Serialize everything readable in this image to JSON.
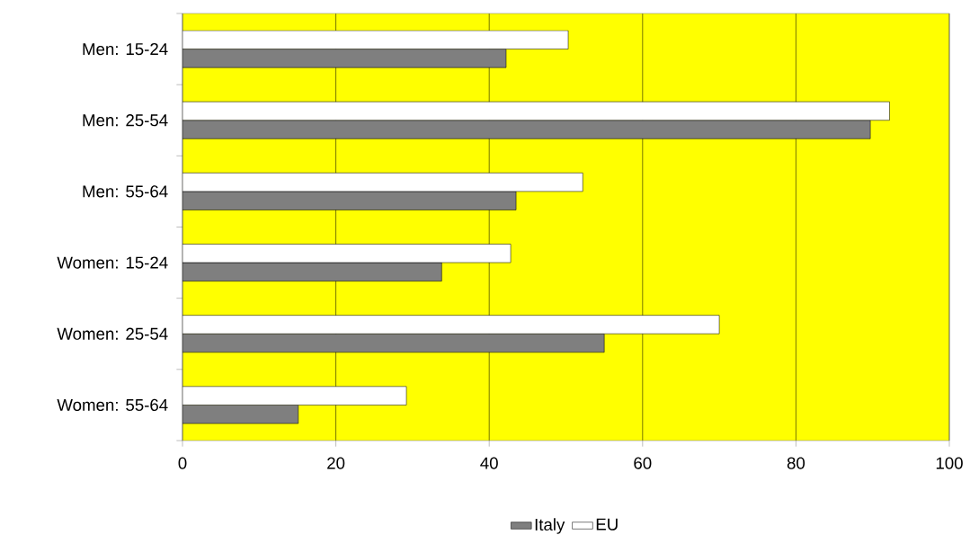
{
  "chart_data": {
    "type": "bar",
    "orientation": "horizontal",
    "categories": [
      "Men: 15-24",
      "Men: 25-54",
      "Men: 55-64",
      "Women: 15-24",
      "Women: 25-54",
      "Women: 55-64"
    ],
    "series": [
      {
        "name": "Italy",
        "color": "#7f7f7f",
        "values": [
          42.2,
          89.7,
          43.5,
          33.8,
          55.0,
          15.1
        ]
      },
      {
        "name": "EU",
        "color": "#ffffff",
        "values": [
          50.3,
          92.2,
          52.2,
          42.8,
          70.0,
          29.2
        ]
      }
    ],
    "xlim": [
      0,
      100
    ],
    "xticks": [
      0,
      20,
      40,
      60,
      80,
      100
    ],
    "grid": "x",
    "legend": "bottom"
  }
}
